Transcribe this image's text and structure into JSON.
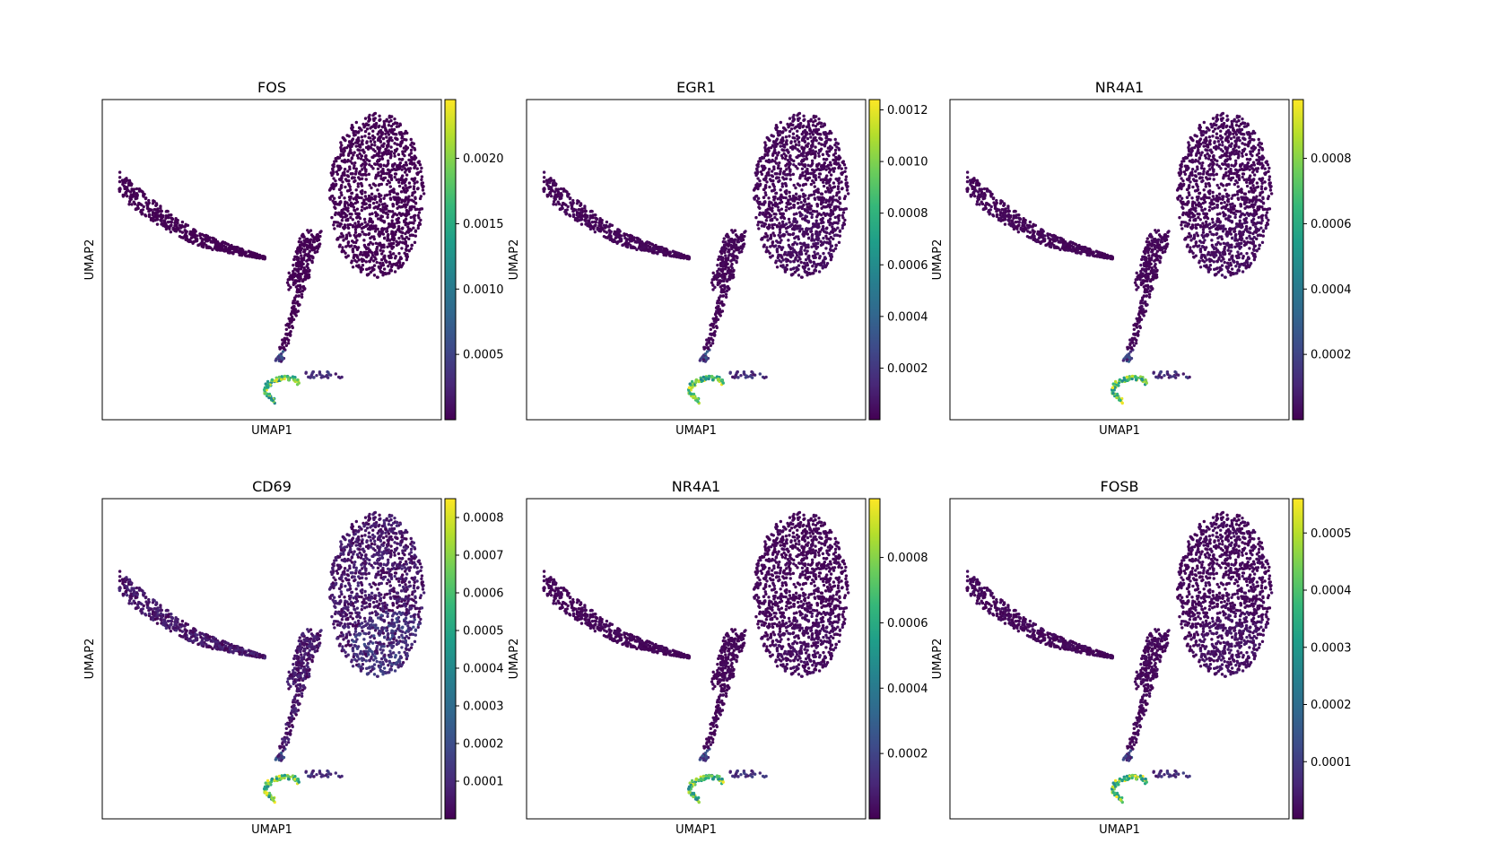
{
  "chart_data": [
    {
      "type": "scatter",
      "title": "FOS",
      "xlabel": "UMAP1",
      "ylabel": "UMAP2",
      "colormap": "viridis",
      "color_range": [
        0.0,
        0.00245
      ],
      "colorbar_ticks": [
        0.0005,
        0.001,
        0.0015,
        0.002
      ],
      "colorbar_tick_labels": [
        "0.0005",
        "0.0010",
        "0.0015",
        "0.0020"
      ],
      "ambient_level": 0.0,
      "hotspot_level": 1.0
    },
    {
      "type": "scatter",
      "title": "EGR1",
      "xlabel": "UMAP1",
      "ylabel": "UMAP2",
      "colormap": "viridis",
      "color_range": [
        0.0,
        0.00124
      ],
      "colorbar_ticks": [
        0.0002,
        0.0004,
        0.0006,
        0.0008,
        0.001,
        0.0012
      ],
      "colorbar_tick_labels": [
        "0.0002",
        "0.0004",
        "0.0006",
        "0.0008",
        "0.0010",
        "0.0012"
      ],
      "ambient_level": 0.03,
      "hotspot_level": 1.0
    },
    {
      "type": "scatter",
      "title": "NR4A1",
      "xlabel": "UMAP1",
      "ylabel": "UMAP2",
      "colormap": "viridis",
      "color_range": [
        0.0,
        0.00098
      ],
      "colorbar_ticks": [
        0.0002,
        0.0004,
        0.0006,
        0.0008
      ],
      "colorbar_tick_labels": [
        "0.0002",
        "0.0004",
        "0.0006",
        "0.0008"
      ],
      "ambient_level": 0.03,
      "hotspot_level": 1.0
    },
    {
      "type": "scatter",
      "title": "CD69",
      "xlabel": "UMAP1",
      "ylabel": "UMAP2",
      "colormap": "viridis",
      "color_range": [
        0.0,
        0.00085
      ],
      "colorbar_ticks": [
        0.0001,
        0.0002,
        0.0003,
        0.0004,
        0.0005,
        0.0006,
        0.0007,
        0.0008
      ],
      "colorbar_tick_labels": [
        "0.0001",
        "0.0002",
        "0.0003",
        "0.0004",
        "0.0005",
        "0.0006",
        "0.0007",
        "0.0008"
      ],
      "ambient_level": 0.12,
      "hotspot_level": 1.0
    },
    {
      "type": "scatter",
      "title": "NR4A1",
      "xlabel": "UMAP1",
      "ylabel": "UMAP2",
      "colormap": "viridis",
      "color_range": [
        0.0,
        0.00098
      ],
      "colorbar_ticks": [
        0.0002,
        0.0004,
        0.0006,
        0.0008
      ],
      "colorbar_tick_labels": [
        "0.0002",
        "0.0004",
        "0.0006",
        "0.0008"
      ],
      "ambient_level": 0.03,
      "hotspot_level": 1.0
    },
    {
      "type": "scatter",
      "title": "FOSB",
      "xlabel": "UMAP1",
      "ylabel": "UMAP2",
      "colormap": "viridis",
      "color_range": [
        0.0,
        0.00056
      ],
      "colorbar_ticks": [
        0.0001,
        0.0002,
        0.0003,
        0.0004,
        0.0005
      ],
      "colorbar_tick_labels": [
        "0.0001",
        "0.0002",
        "0.0003",
        "0.0004",
        "0.0005"
      ],
      "ambient_level": 0.04,
      "hotspot_level": 1.0
    }
  ]
}
